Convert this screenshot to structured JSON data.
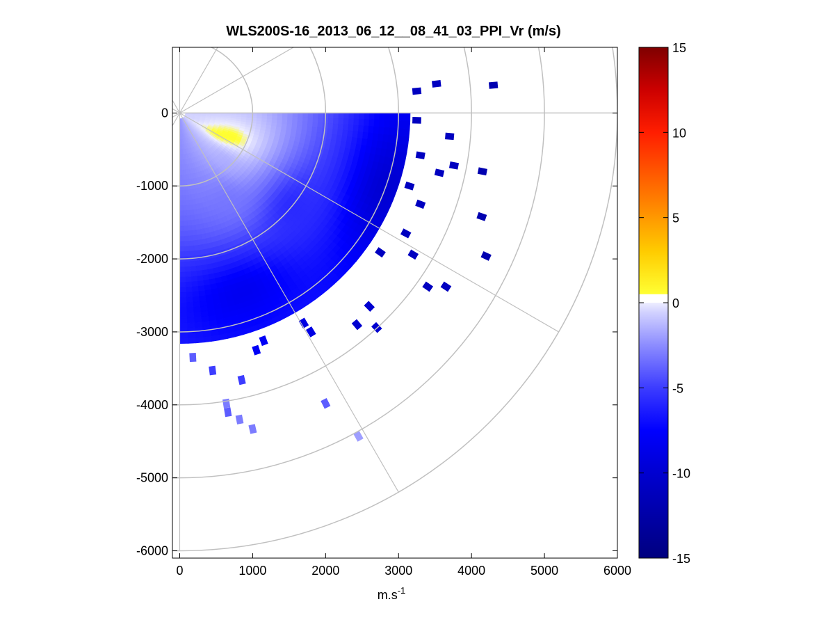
{
  "chart_data": {
    "type": "heatmap",
    "subtype": "polar-ppi",
    "title": "WLS200S-16_2013_06_12__08_41_03_PPI_Vr (m/s)",
    "xlabel": {
      "base": "m.s",
      "superscript": "-1"
    },
    "ylabel": "",
    "xlim": [
      -100,
      6000
    ],
    "ylim": [
      -6100,
      900
    ],
    "xticks": [
      0,
      1000,
      2000,
      3000,
      4000,
      5000,
      6000
    ],
    "yticks": [
      0,
      -1000,
      -2000,
      -3000,
      -4000,
      -5000,
      -6000
    ],
    "grid": {
      "range_rings_m": [
        1000,
        2000,
        3000,
        4000,
        5000,
        6000
      ],
      "spokes_deg": [
        0,
        30,
        60,
        90,
        120,
        150
      ],
      "color": "#c0c0c0"
    },
    "scan": {
      "azimuth_range_deg": [
        0,
        90
      ],
      "coverage_note_range_max_m": 3150,
      "dominant_value_range": [
        -11,
        0.5
      ]
    },
    "field_samples": [
      {
        "range": 150,
        "az_deg": 20,
        "vr": -0.6
      },
      {
        "range": 600,
        "az_deg": 30,
        "vr": 0.9
      },
      {
        "range": 800,
        "az_deg": 25,
        "vr": 1.0
      },
      {
        "range": 900,
        "az_deg": 45,
        "vr": -1.6
      },
      {
        "range": 1400,
        "az_deg": 60,
        "vr": -3.2
      },
      {
        "range": 2000,
        "az_deg": 40,
        "vr": -6.0
      },
      {
        "range": 2600,
        "az_deg": 70,
        "vr": -8.5
      },
      {
        "range": 3000,
        "az_deg": 20,
        "vr": -10.2
      }
    ],
    "scatter_cells": [
      {
        "x": 3250,
        "y": 300,
        "vr": -11
      },
      {
        "x": 3520,
        "y": 400,
        "vr": -11
      },
      {
        "x": 3700,
        "y": -320,
        "vr": -11
      },
      {
        "x": 4300,
        "y": 380,
        "vr": -12
      },
      {
        "x": 3560,
        "y": -820,
        "vr": -11
      },
      {
        "x": 3760,
        "y": -720,
        "vr": -11
      },
      {
        "x": 4150,
        "y": -800,
        "vr": -12
      },
      {
        "x": 4140,
        "y": -1420,
        "vr": -12
      },
      {
        "x": 4200,
        "y": -1960,
        "vr": -12
      },
      {
        "x": 3400,
        "y": -2380,
        "vr": -11
      },
      {
        "x": 3650,
        "y": -2380,
        "vr": -11
      },
      {
        "x": 3200,
        "y": -1940,
        "vr": -11
      },
      {
        "x": 2750,
        "y": -1910,
        "vr": -11
      },
      {
        "x": 3100,
        "y": -1650,
        "vr": -11
      },
      {
        "x": 2600,
        "y": -2650,
        "vr": -10
      },
      {
        "x": 2430,
        "y": -2900,
        "vr": -10
      },
      {
        "x": 2700,
        "y": -2940,
        "vr": -10
      },
      {
        "x": 1800,
        "y": -3000,
        "vr": -9
      },
      {
        "x": 1700,
        "y": -2880,
        "vr": -9
      },
      {
        "x": 1150,
        "y": -3120,
        "vr": -8
      },
      {
        "x": 1050,
        "y": -3250,
        "vr": -8
      },
      {
        "x": 850,
        "y": -3660,
        "vr": -5
      },
      {
        "x": 450,
        "y": -3530,
        "vr": -5
      },
      {
        "x": 180,
        "y": -3350,
        "vr": -4
      },
      {
        "x": 640,
        "y": -3980,
        "vr": -3
      },
      {
        "x": 660,
        "y": -4100,
        "vr": -4
      },
      {
        "x": 820,
        "y": -4200,
        "vr": -3
      },
      {
        "x": 1000,
        "y": -4330,
        "vr": -3
      },
      {
        "x": 2000,
        "y": -3980,
        "vr": -4
      },
      {
        "x": 2450,
        "y": -4430,
        "vr": -2
      },
      {
        "x": 3250,
        "y": -100,
        "vr": -11
      },
      {
        "x": 3300,
        "y": -580,
        "vr": -11
      },
      {
        "x": 3150,
        "y": -1000,
        "vr": -11
      },
      {
        "x": 3300,
        "y": -1250,
        "vr": -11
      }
    ],
    "colorbar": {
      "min": -15,
      "max": 15,
      "ticks": [
        15,
        10,
        5,
        0,
        -5,
        -10,
        -15
      ],
      "gap": [
        0,
        0.5
      ],
      "stops": [
        {
          "v": -15,
          "color": "#00007f"
        },
        {
          "v": -10,
          "color": "#0000d0"
        },
        {
          "v": -7.5,
          "color": "#0000ff"
        },
        {
          "v": -5,
          "color": "#3c3cff"
        },
        {
          "v": -2.5,
          "color": "#8c8cff"
        },
        {
          "v": -0.5,
          "color": "#d4d4ff"
        },
        {
          "v": 0,
          "color": "#ededff"
        },
        {
          "v": 0.5,
          "color": "#ffff33"
        },
        {
          "v": 3,
          "color": "#ffcc00"
        },
        {
          "v": 6,
          "color": "#ff7f00"
        },
        {
          "v": 10,
          "color": "#ff1e00"
        },
        {
          "v": 12.5,
          "color": "#cc0000"
        },
        {
          "v": 15,
          "color": "#7f0000"
        }
      ]
    }
  }
}
